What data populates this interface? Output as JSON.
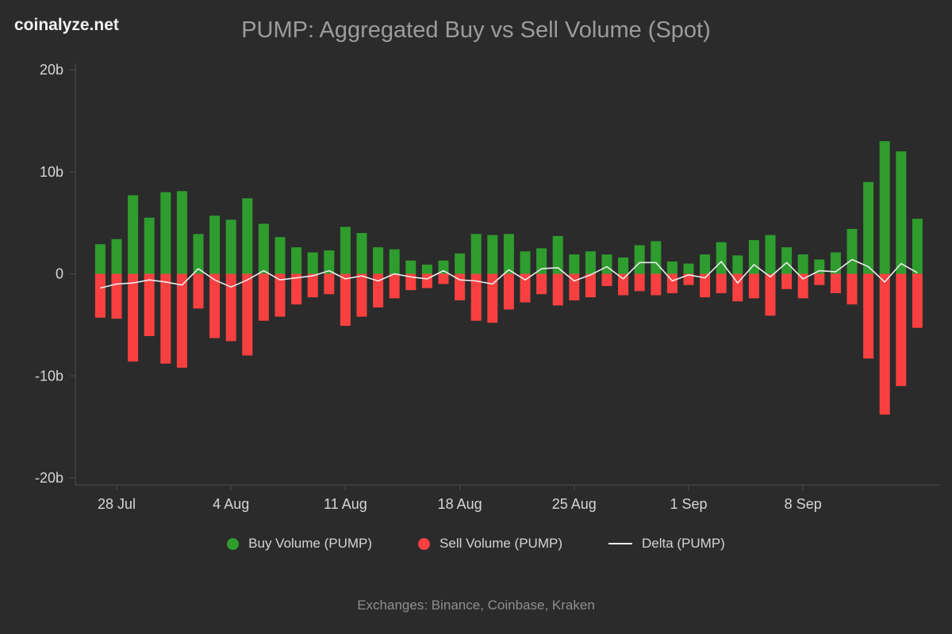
{
  "page": {
    "logo": "coinalyze.net",
    "title": "PUMP: Aggregated Buy vs Sell Volume (Spot)",
    "footer": "Exchanges: Binance, Coinbase, Kraken"
  },
  "legend": {
    "buy": "Buy Volume (PUMP)",
    "sell": "Sell Volume (PUMP)",
    "delta": "Delta (PUMP)"
  },
  "colors": {
    "background": "#2b2b2b",
    "buy": "#2e9d2e",
    "sell": "#f94040",
    "delta": "#ededed",
    "axis": "#4d4d4d",
    "title": "#9c9c9c",
    "tick_label": "#d6d6d6",
    "footer": "#8f8f8f"
  },
  "chart_data": {
    "type": "bar",
    "title": "PUMP: Aggregated Buy vs Sell Volume (Spot)",
    "unit": "billions",
    "grid": false,
    "legend_position": "bottom",
    "ylim": [
      -20,
      20
    ],
    "y_ticks": [
      {
        "value": 20,
        "label": "20b"
      },
      {
        "value": 10,
        "label": "10b"
      },
      {
        "value": 0,
        "label": "0"
      },
      {
        "value": -10,
        "label": "-10b"
      },
      {
        "value": -20,
        "label": "-20b"
      }
    ],
    "x_ticks": [
      {
        "index": 1,
        "label": "28 Jul"
      },
      {
        "index": 8,
        "label": "4 Aug"
      },
      {
        "index": 15,
        "label": "11 Aug"
      },
      {
        "index": 22,
        "label": "18 Aug"
      },
      {
        "index": 29,
        "label": "25 Aug"
      },
      {
        "index": 36,
        "label": "1 Sep"
      },
      {
        "index": 43,
        "label": "8 Sep"
      }
    ],
    "categories": [
      "27 Jul",
      "28 Jul",
      "29 Jul",
      "30 Jul",
      "31 Jul",
      "1 Aug",
      "2 Aug",
      "3 Aug",
      "4 Aug",
      "5 Aug",
      "6 Aug",
      "7 Aug",
      "8 Aug",
      "9 Aug",
      "10 Aug",
      "11 Aug",
      "12 Aug",
      "13 Aug",
      "14 Aug",
      "15 Aug",
      "16 Aug",
      "17 Aug",
      "18 Aug",
      "19 Aug",
      "20 Aug",
      "21 Aug",
      "22 Aug",
      "23 Aug",
      "24 Aug",
      "25 Aug",
      "26 Aug",
      "27 Aug",
      "28 Aug",
      "29 Aug",
      "30 Aug",
      "31 Aug",
      "1 Sep",
      "2 Sep",
      "3 Sep",
      "4 Sep",
      "5 Sep",
      "6 Sep",
      "7 Sep",
      "8 Sep",
      "9 Sep",
      "10 Sep",
      "11 Sep",
      "12 Sep",
      "13 Sep",
      "14 Sep",
      "15 Sep"
    ],
    "series": [
      {
        "name": "Buy Volume (PUMP)",
        "type": "bar",
        "color": "#2e9d2e",
        "values": [
          2.9,
          3.4,
          7.7,
          5.5,
          8.0,
          8.1,
          3.9,
          5.7,
          5.3,
          7.4,
          4.9,
          3.6,
          2.6,
          2.1,
          2.3,
          4.6,
          4.0,
          2.6,
          2.4,
          1.3,
          0.9,
          1.3,
          2.0,
          3.9,
          3.8,
          3.9,
          2.2,
          2.5,
          3.7,
          1.9,
          2.2,
          1.9,
          1.6,
          2.8,
          3.2,
          1.2,
          1.0,
          1.9,
          3.1,
          1.8,
          3.3,
          3.8,
          2.6,
          1.9,
          1.4,
          2.1,
          4.4,
          9.0,
          13.0,
          12.0,
          5.4
        ]
      },
      {
        "name": "Sell Volume (PUMP)",
        "type": "bar",
        "color": "#f94040",
        "values": [
          -4.3,
          -4.4,
          -8.6,
          -6.1,
          -8.8,
          -9.2,
          -3.4,
          -6.3,
          -6.6,
          -8.0,
          -4.6,
          -4.2,
          -3.0,
          -2.3,
          -2.0,
          -5.1,
          -4.2,
          -3.3,
          -2.4,
          -1.6,
          -1.4,
          -1.0,
          -2.6,
          -4.6,
          -4.8,
          -3.5,
          -2.8,
          -2.0,
          -3.1,
          -2.6,
          -2.3,
          -1.2,
          -2.1,
          -1.7,
          -2.1,
          -1.9,
          -1.1,
          -2.3,
          -1.9,
          -2.7,
          -2.4,
          -4.1,
          -1.5,
          -2.4,
          -1.1,
          -1.9,
          -3.0,
          -8.3,
          -13.8,
          -11.0,
          -5.3
        ]
      },
      {
        "name": "Delta (PUMP)",
        "type": "line",
        "color": "#ededed",
        "derived": "buy_plus_sell"
      }
    ]
  }
}
